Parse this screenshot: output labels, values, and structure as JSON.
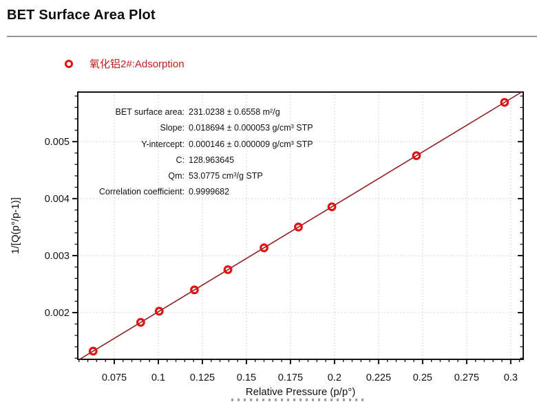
{
  "header": {
    "title": "BET Surface Area Plot"
  },
  "legend": {
    "label": "氧化铝2#:Adsorption",
    "marker": "open-circle-icon",
    "marker_color": "#e01212",
    "text_color": "#cc1a1a"
  },
  "chart_data": {
    "type": "scatter",
    "title": "BET Surface Area Plot",
    "xlabel": "Relative Pressure (p/p°)",
    "ylabel": "1/[Q(p°/p-1)]",
    "xlim": [
      0.0543,
      0.3071
    ],
    "ylim": [
      0.00118,
      0.00587
    ],
    "grid": "dotted-at-major-ticks",
    "x_major_ticks": [
      0.075,
      0.1,
      0.125,
      0.15,
      0.175,
      0.2,
      0.225,
      0.25,
      0.275,
      0.3
    ],
    "x_tick_labels": [
      "0.075",
      "0.1",
      "0.125",
      "0.15",
      "0.175",
      "0.2",
      "0.225",
      "0.25",
      "0.275",
      "0.3"
    ],
    "x_minor_step": 0.005,
    "y_major_ticks": [
      0.002,
      0.003,
      0.004,
      0.005
    ],
    "y_tick_labels": [
      "0.002",
      "0.003",
      "0.004",
      "0.005"
    ],
    "y_minor_step": 0.0002,
    "line_color": "#8e1f1f",
    "marker_color": "#e01212",
    "grid_color": "#c8c8c8",
    "series": [
      {
        "name": "氧化铝2#:Adsorption",
        "marker": "open-circle",
        "points": [
          [
            0.063,
            0.0013237
          ],
          [
            0.09,
            0.0018285
          ],
          [
            0.1005,
            0.0020247
          ],
          [
            0.1205,
            0.0023986
          ],
          [
            0.1395,
            0.0027538
          ],
          [
            0.16,
            0.003137
          ],
          [
            0.1795,
            0.0035016
          ],
          [
            0.1985,
            0.0038568
          ],
          [
            0.2465,
            0.0047541
          ],
          [
            0.2965,
            0.0056888
          ]
        ]
      }
    ],
    "fit": {
      "slope": 0.018694,
      "intercept": 0.000146
    },
    "annotations": [
      {
        "label": "BET surface area:",
        "value": "231.0238 ± 0.6558 m²/g"
      },
      {
        "label": "Slope:",
        "value": "0.018694 ± 0.000053 g/cm³ STP"
      },
      {
        "label": "Y-intercept:",
        "value": "0.000146 ± 0.000009 g/cm³ STP"
      },
      {
        "label": "C:",
        "value": "128.963645"
      },
      {
        "label": "Qm:",
        "value": "53.0775 cm³/g STP"
      },
      {
        "label": "Correlation coefficient:",
        "value": "0.9999682"
      }
    ]
  }
}
